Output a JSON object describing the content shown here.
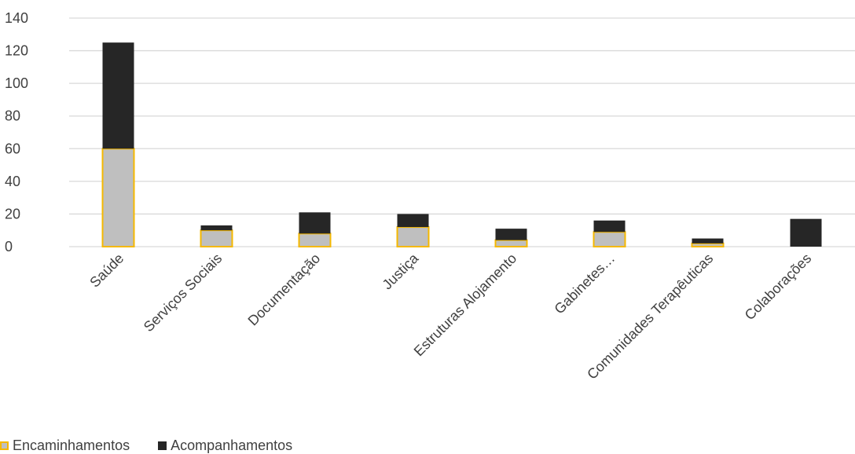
{
  "chart_data": {
    "type": "bar",
    "stacked": true,
    "categories": [
      "Saúde",
      "Serviços Sociais",
      "Documentação",
      "Justiça",
      "Estruturas Alojamento",
      "Gabinetes…",
      "Comunidades Terapêuticas",
      "Colaborações"
    ],
    "series": [
      {
        "name": "Encaminhamentos",
        "values": [
          60,
          10,
          8,
          12,
          4,
          9,
          2,
          0
        ]
      },
      {
        "name": "Acompanhamentos",
        "values": [
          65,
          3,
          13,
          8,
          7,
          7,
          3,
          17
        ]
      }
    ],
    "ylim": [
      0,
      140
    ],
    "yticks": [
      0,
      20,
      40,
      60,
      80,
      100,
      120,
      140
    ],
    "grid": true,
    "legend_position": "bottom-left",
    "colors": {
      "Encaminhamentos_fill": "#bfbfbf",
      "Encaminhamentos_border": "#f5b800",
      "Acompanhamentos_fill": "#262626",
      "gridline": "#d9d9d9",
      "text": "#404040"
    }
  }
}
